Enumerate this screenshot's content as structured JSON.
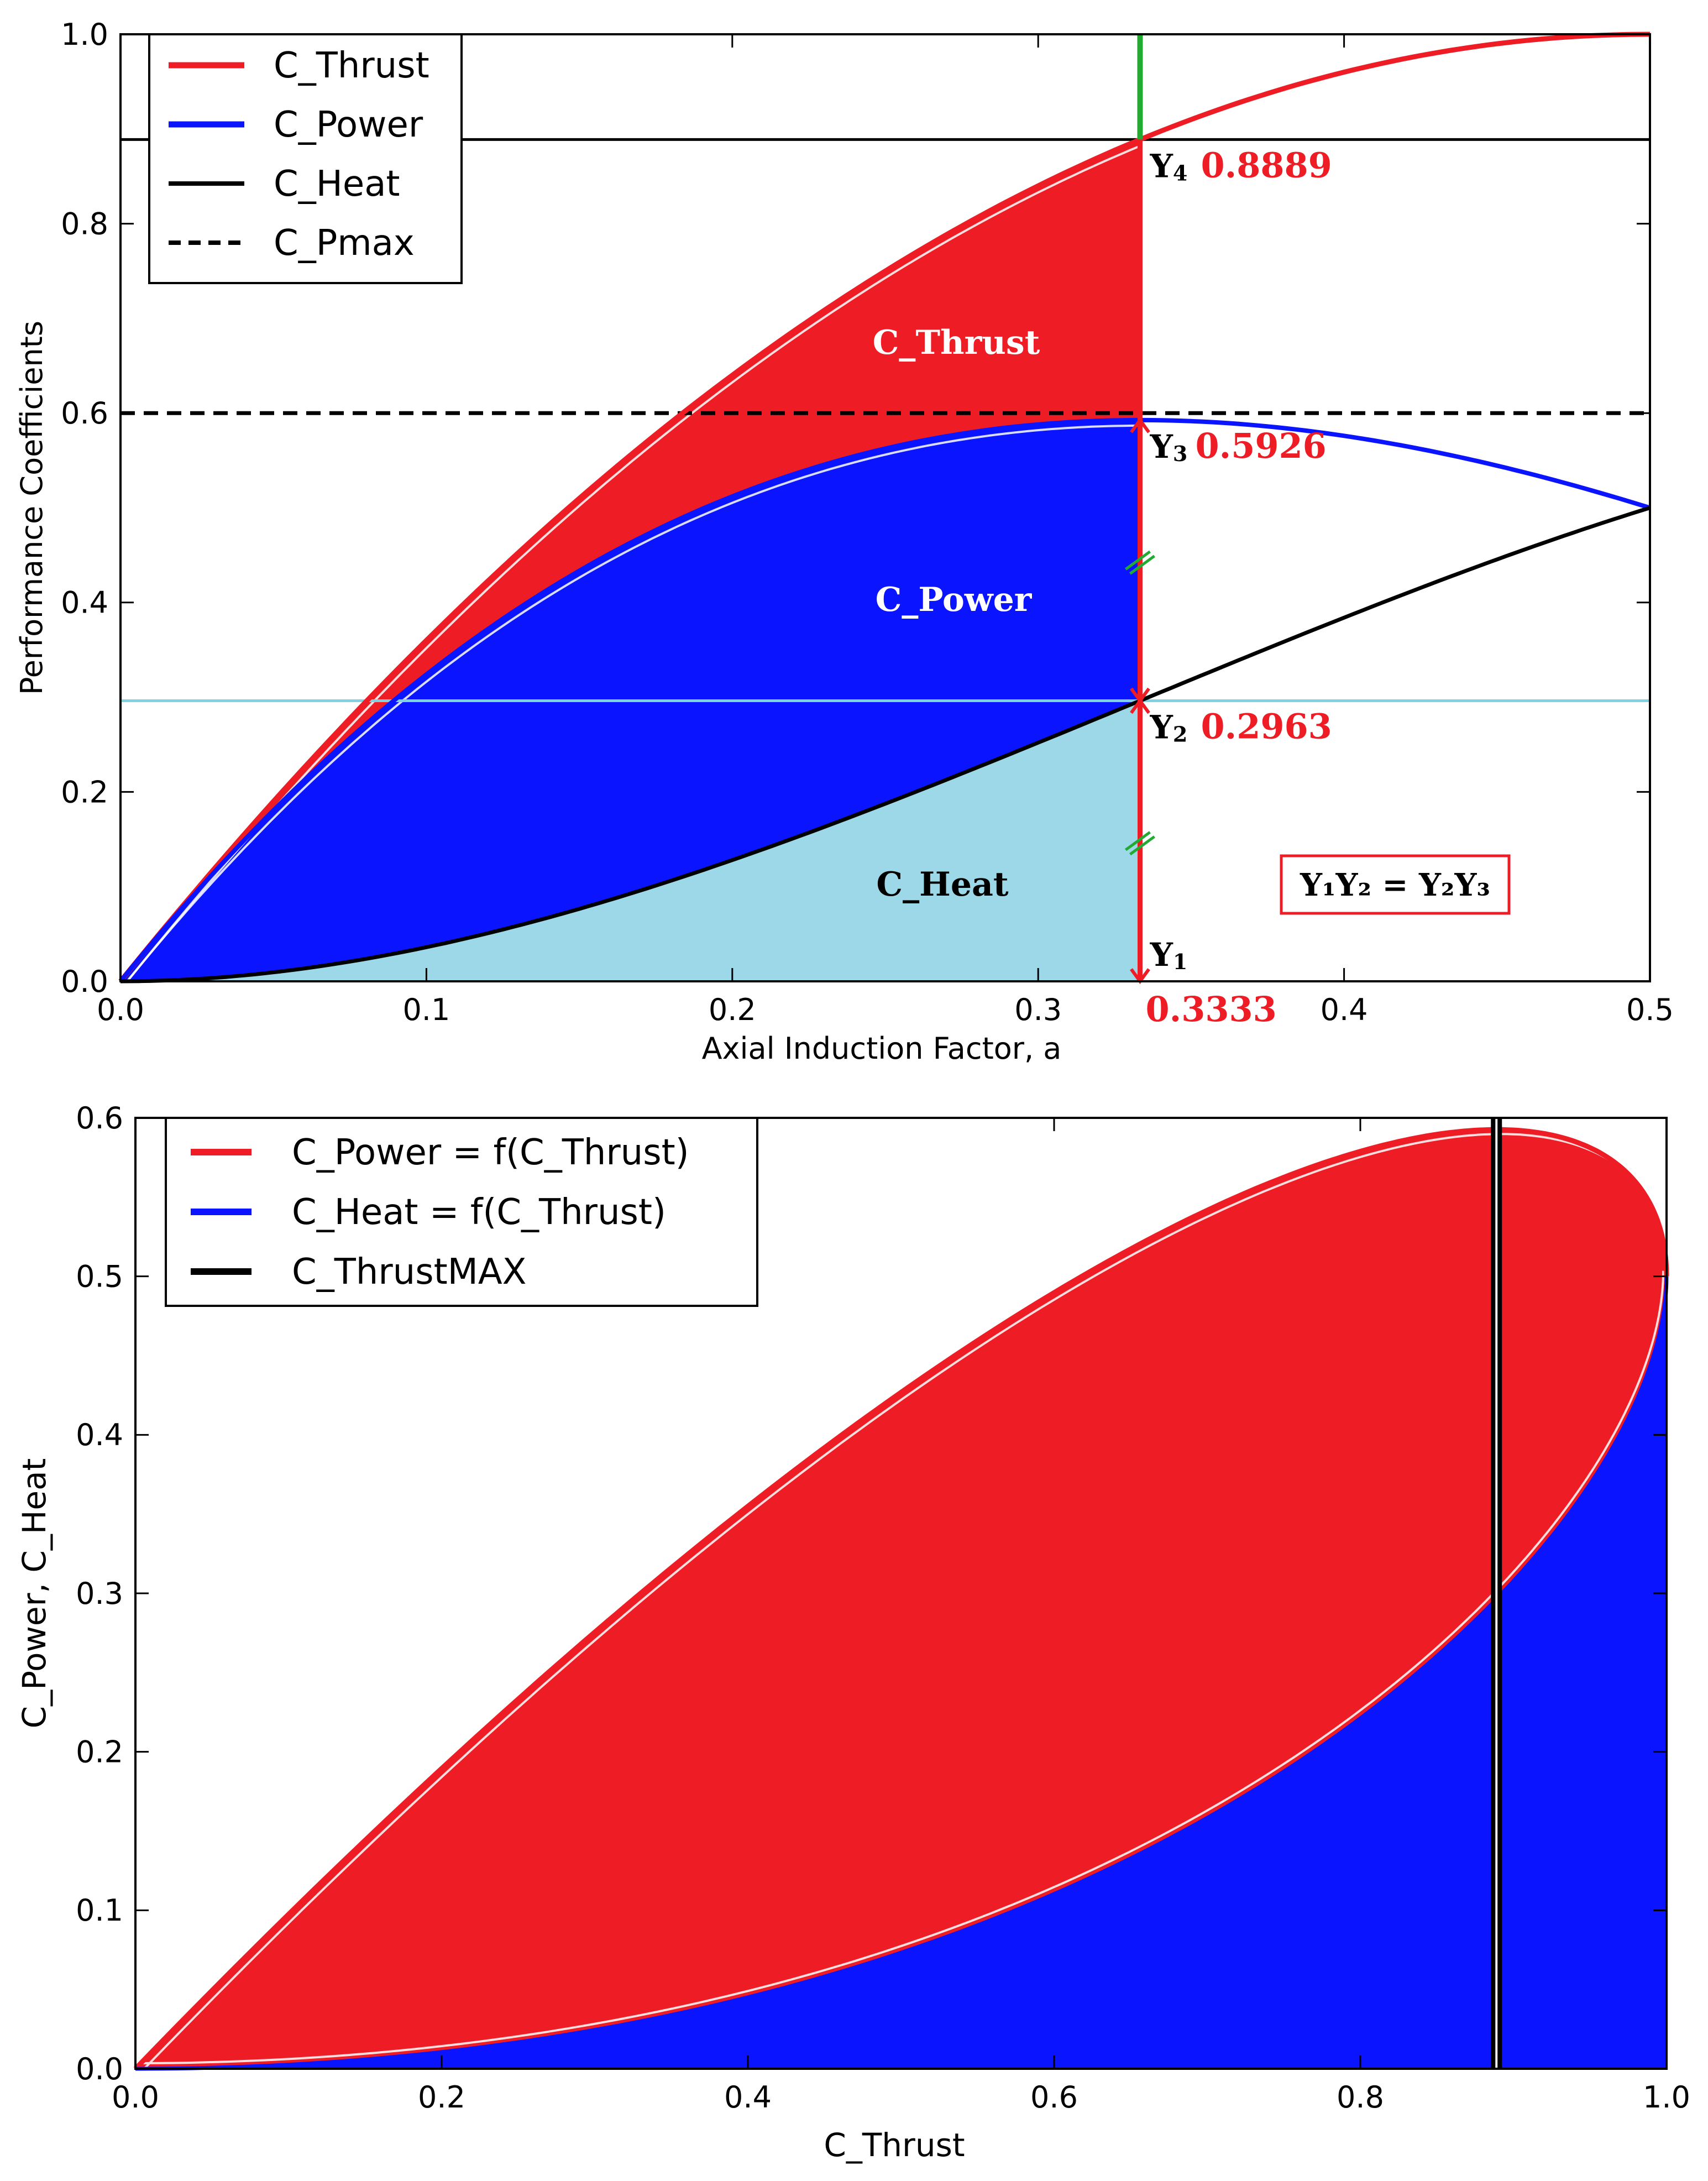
{
  "chart_data": [
    {
      "type": "area",
      "title": "",
      "xlabel": "Axial Induction Factor, a",
      "ylabel": "Performance Coefficients",
      "xlim": [
        0,
        0.5
      ],
      "ylim": [
        0,
        1.0
      ],
      "x_ticks": [
        "0.0",
        "0.1",
        "0.2",
        "0.3",
        "0.4",
        "0.5"
      ],
      "y_ticks": [
        "0.0",
        "0.2",
        "0.4",
        "0.6",
        "0.8",
        "1.0"
      ],
      "legend_position": "top-left",
      "series": [
        {
          "name": "C_Thrust",
          "formula": "4a(1-a)",
          "color": "#ee1c24",
          "style": "solid"
        },
        {
          "name": "C_Power",
          "formula": "4a(1-a)^2",
          "color": "#0a14ff",
          "style": "solid"
        },
        {
          "name": "C_Heat",
          "formula": "4a^2(1-a)",
          "color": "#000000",
          "style": "solid"
        },
        {
          "name": "C_Pmax",
          "value": 0.6,
          "color": "#000000",
          "style": "dashed"
        }
      ],
      "marker_x": 0.3333,
      "region_labels": {
        "thrust": "C_Thrust",
        "power": "C_Power",
        "heat": "C_Heat"
      },
      "annotations": {
        "y4": {
          "sub": "4",
          "value": "0.8889"
        },
        "y3": {
          "sub": "3",
          "value": "0.5926"
        },
        "y2": {
          "sub": "2",
          "value": "0.2963"
        },
        "y1": {
          "sub": "1",
          "value": "0.3333"
        },
        "equation": "Y₁Y₂ = Y₂Y₃"
      },
      "colors": {
        "thrust": "#ee1c24",
        "power": "#0a14ff",
        "heat": "#9dd8e8",
        "marker": "#22aa33",
        "cyan_line": "#7fd3e0"
      }
    },
    {
      "type": "area",
      "title": "",
      "xlabel": "C_Thrust",
      "ylabel": "C_Power, C_Heat",
      "xlim": [
        0,
        1.0
      ],
      "ylim": [
        0,
        0.6
      ],
      "x_ticks": [
        "0.0",
        "0.2",
        "0.4",
        "0.6",
        "0.8",
        "1.0"
      ],
      "y_ticks": [
        "0.0",
        "0.1",
        "0.2",
        "0.3",
        "0.4",
        "0.5",
        "0.6"
      ],
      "legend_position": "top-left",
      "series": [
        {
          "name": "C_Power = f(C_Thrust)",
          "color": "#ee1c24"
        },
        {
          "name": "C_Heat = f(C_Thrust)",
          "color": "#0a14ff"
        },
        {
          "name": "C_ThrustMAX",
          "value": 0.8889,
          "color": "#000000"
        }
      ]
    }
  ]
}
